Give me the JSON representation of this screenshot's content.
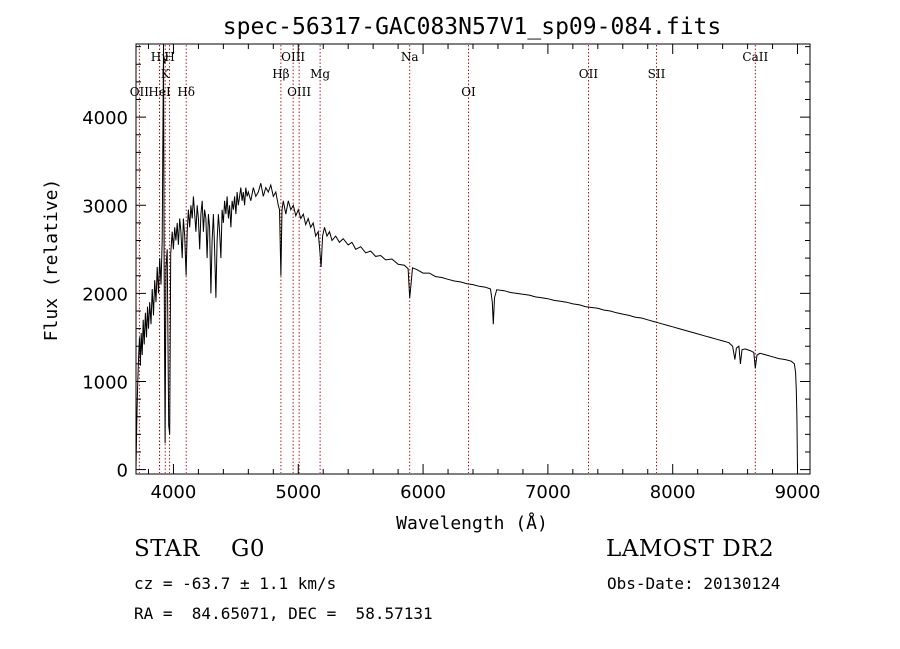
{
  "chart_data": {
    "type": "line",
    "title": "spec-56317-GAC083N57V1_sp09-084.fits",
    "xlabel": "Wavelength (Å)",
    "ylabel": "Flux (relative)",
    "xlim": [
      3700,
      9100
    ],
    "ylim": [
      -50,
      4830
    ],
    "xticks": [
      4000,
      5000,
      6000,
      7000,
      8000,
      9000
    ],
    "yticks": [
      0,
      1000,
      2000,
      3000,
      4000
    ],
    "grid": false,
    "series": [
      {
        "points": [
          [
            3700,
            0
          ],
          [
            3705,
            420
          ],
          [
            3712,
            900
          ],
          [
            3720,
            1250
          ],
          [
            3728,
            1500
          ],
          [
            3735,
            1180
          ],
          [
            3742,
            1550
          ],
          [
            3750,
            1300
          ],
          [
            3758,
            1700
          ],
          [
            3766,
            1420
          ],
          [
            3775,
            1780
          ],
          [
            3784,
            1500
          ],
          [
            3792,
            1850
          ],
          [
            3800,
            1600
          ],
          [
            3810,
            1900
          ],
          [
            3820,
            1650
          ],
          [
            3830,
            2050
          ],
          [
            3840,
            1750
          ],
          [
            3850,
            2150
          ],
          [
            3860,
            1900
          ],
          [
            3870,
            2300
          ],
          [
            3880,
            2000
          ],
          [
            3890,
            2400
          ],
          [
            3900,
            2100
          ],
          [
            3910,
            2600
          ],
          [
            3920,
            4830
          ],
          [
            3925,
            2400
          ],
          [
            3933,
            300
          ],
          [
            3940,
            2300
          ],
          [
            3950,
            2500
          ],
          [
            3962,
            500
          ],
          [
            3970,
            400
          ],
          [
            3978,
            2450
          ],
          [
            3990,
            2700
          ],
          [
            4000,
            2500
          ],
          [
            4010,
            2750
          ],
          [
            4020,
            2600
          ],
          [
            4030,
            2800
          ],
          [
            4040,
            2550
          ],
          [
            4050,
            2850
          ],
          [
            4060,
            2700
          ],
          [
            4070,
            2400
          ],
          [
            4080,
            2850
          ],
          [
            4090,
            2650
          ],
          [
            4101,
            2200
          ],
          [
            4110,
            2700
          ],
          [
            4120,
            2950
          ],
          [
            4130,
            2750
          ],
          [
            4140,
            3000
          ],
          [
            4150,
            2850
          ],
          [
            4160,
            3100
          ],
          [
            4170,
            2900
          ],
          [
            4180,
            2700
          ],
          [
            4190,
            3000
          ],
          [
            4200,
            2850
          ],
          [
            4210,
            2500
          ],
          [
            4220,
            2900
          ],
          [
            4230,
            3050
          ],
          [
            4240,
            2700
          ],
          [
            4250,
            2950
          ],
          [
            4260,
            2850
          ],
          [
            4270,
            2400
          ],
          [
            4280,
            2900
          ],
          [
            4290,
            2750
          ],
          [
            4300,
            2000
          ],
          [
            4310,
            2600
          ],
          [
            4320,
            2900
          ],
          [
            4330,
            2500
          ],
          [
            4340,
            1950
          ],
          [
            4350,
            2600
          ],
          [
            4360,
            2900
          ],
          [
            4370,
            2700
          ],
          [
            4380,
            2400
          ],
          [
            4390,
            2950
          ],
          [
            4400,
            2800
          ],
          [
            4410,
            3050
          ],
          [
            4420,
            2900
          ],
          [
            4430,
            3100
          ],
          [
            4440,
            2850
          ],
          [
            4450,
            3000
          ],
          [
            4460,
            2750
          ],
          [
            4470,
            3050
          ],
          [
            4480,
            2950
          ],
          [
            4490,
            3100
          ],
          [
            4500,
            2900
          ],
          [
            4510,
            3150
          ],
          [
            4520,
            3000
          ],
          [
            4530,
            3100
          ],
          [
            4540,
            3200
          ],
          [
            4550,
            3050
          ],
          [
            4560,
            3150
          ],
          [
            4570,
            3000
          ],
          [
            4580,
            3200
          ],
          [
            4590,
            3100
          ],
          [
            4600,
            3150
          ],
          [
            4620,
            3050
          ],
          [
            4640,
            3200
          ],
          [
            4660,
            3100
          ],
          [
            4680,
            3150
          ],
          [
            4700,
            3250
          ],
          [
            4720,
            3100
          ],
          [
            4740,
            3200
          ],
          [
            4760,
            3150
          ],
          [
            4780,
            3230
          ],
          [
            4800,
            3100
          ],
          [
            4820,
            3150
          ],
          [
            4840,
            3000
          ],
          [
            4850,
            2950
          ],
          [
            4861,
            2200
          ],
          [
            4870,
            2950
          ],
          [
            4880,
            3050
          ],
          [
            4900,
            2900
          ],
          [
            4920,
            3050
          ],
          [
            4940,
            2950
          ],
          [
            4960,
            3000
          ],
          [
            4980,
            2880
          ],
          [
            5000,
            2950
          ],
          [
            5020,
            2850
          ],
          [
            5040,
            2900
          ],
          [
            5060,
            2780
          ],
          [
            5080,
            2850
          ],
          [
            5100,
            2750
          ],
          [
            5120,
            2800
          ],
          [
            5140,
            2650
          ],
          [
            5160,
            2700
          ],
          [
            5172,
            2500
          ],
          [
            5183,
            2300
          ],
          [
            5195,
            2650
          ],
          [
            5210,
            2750
          ],
          [
            5230,
            2650
          ],
          [
            5250,
            2700
          ],
          [
            5270,
            2600
          ],
          [
            5300,
            2650
          ],
          [
            5330,
            2580
          ],
          [
            5360,
            2620
          ],
          [
            5400,
            2550
          ],
          [
            5430,
            2580
          ],
          [
            5460,
            2500
          ],
          [
            5500,
            2530
          ],
          [
            5540,
            2460
          ],
          [
            5580,
            2480
          ],
          [
            5620,
            2420
          ],
          [
            5660,
            2430
          ],
          [
            5700,
            2380
          ],
          [
            5750,
            2390
          ],
          [
            5800,
            2330
          ],
          [
            5850,
            2320
          ],
          [
            5880,
            2280
          ],
          [
            5893,
            1950
          ],
          [
            5900,
            2050
          ],
          [
            5915,
            2290
          ],
          [
            5950,
            2270
          ],
          [
            6000,
            2230
          ],
          [
            6050,
            2230
          ],
          [
            6100,
            2190
          ],
          [
            6150,
            2180
          ],
          [
            6200,
            2160
          ],
          [
            6250,
            2140
          ],
          [
            6300,
            2130
          ],
          [
            6350,
            2110
          ],
          [
            6400,
            2100
          ],
          [
            6450,
            2080
          ],
          [
            6500,
            2070
          ],
          [
            6540,
            2050
          ],
          [
            6555,
            1900
          ],
          [
            6563,
            1650
          ],
          [
            6572,
            1950
          ],
          [
            6590,
            2040
          ],
          [
            6650,
            2030
          ],
          [
            6700,
            2010
          ],
          [
            6750,
            2000
          ],
          [
            6800,
            1990
          ],
          [
            6850,
            1980
          ],
          [
            6900,
            1960
          ],
          [
            6950,
            1950
          ],
          [
            7000,
            1940
          ],
          [
            7050,
            1920
          ],
          [
            7100,
            1910
          ],
          [
            7150,
            1900
          ],
          [
            7200,
            1880
          ],
          [
            7250,
            1870
          ],
          [
            7300,
            1850
          ],
          [
            7350,
            1840
          ],
          [
            7400,
            1830
          ],
          [
            7450,
            1810
          ],
          [
            7500,
            1800
          ],
          [
            7550,
            1780
          ],
          [
            7600,
            1765
          ],
          [
            7650,
            1750
          ],
          [
            7700,
            1730
          ],
          [
            7750,
            1720
          ],
          [
            7800,
            1700
          ],
          [
            7850,
            1680
          ],
          [
            7900,
            1660
          ],
          [
            7950,
            1640
          ],
          [
            8000,
            1620
          ],
          [
            8050,
            1600
          ],
          [
            8100,
            1580
          ],
          [
            8150,
            1560
          ],
          [
            8200,
            1540
          ],
          [
            8250,
            1520
          ],
          [
            8300,
            1500
          ],
          [
            8350,
            1480
          ],
          [
            8400,
            1460
          ],
          [
            8450,
            1440
          ],
          [
            8480,
            1400
          ],
          [
            8498,
            1250
          ],
          [
            8510,
            1380
          ],
          [
            8530,
            1400
          ],
          [
            8542,
            1200
          ],
          [
            8555,
            1360
          ],
          [
            8580,
            1370
          ],
          [
            8620,
            1350
          ],
          [
            8650,
            1330
          ],
          [
            8662,
            1150
          ],
          [
            8675,
            1300
          ],
          [
            8700,
            1320
          ],
          [
            8750,
            1300
          ],
          [
            8800,
            1280
          ],
          [
            8850,
            1260
          ],
          [
            8900,
            1250
          ],
          [
            8950,
            1230
          ],
          [
            8975,
            1200
          ],
          [
            8985,
            1100
          ],
          [
            8990,
            900
          ],
          [
            8995,
            600
          ],
          [
            9000,
            0
          ]
        ]
      }
    ],
    "lines": [
      {
        "label": "OII",
        "x": 3727,
        "row": 3
      },
      {
        "label": "Hγ",
        "x": 3889,
        "row": 1
      },
      {
        "label": "HeI",
        "x": 3889,
        "row": 3
      },
      {
        "label": "K",
        "x": 3934,
        "row": 2
      },
      {
        "label": "H",
        "x": 3969,
        "row": 1
      },
      {
        "label": "Hδ",
        "x": 4102,
        "row": 3
      },
      {
        "label": "Hβ",
        "x": 4861,
        "row": 2
      },
      {
        "label": "OIII",
        "x": 4959,
        "row": 1
      },
      {
        "label": "OIII",
        "x": 5007,
        "row": 3
      },
      {
        "label": "Mg",
        "x": 5175,
        "row": 2
      },
      {
        "label": "Na",
        "x": 5893,
        "row": 1
      },
      {
        "label": "OI",
        "x": 6364,
        "row": 3
      },
      {
        "label": "OII",
        "x": 7325,
        "row": 2
      },
      {
        "label": "SII",
        "x": 7870,
        "row": 2
      },
      {
        "label": "CaII",
        "x": 8662,
        "row": 1
      }
    ]
  },
  "footer": {
    "class_line": "STAR    G0",
    "survey": "LAMOST DR2",
    "cz_line": "cz = -63.7 ± 1.1 km/s",
    "obs_date": "Obs-Date: 20130124",
    "radec": "RA =  84.65071, DEC =  58.57131"
  }
}
